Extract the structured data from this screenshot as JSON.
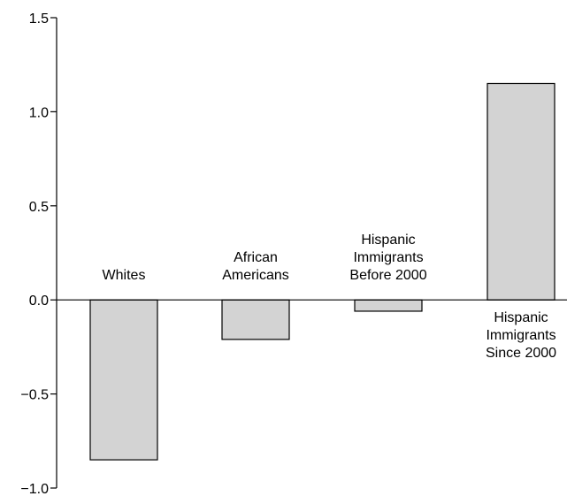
{
  "chart_data": {
    "type": "bar",
    "categories": [
      [
        "Whites"
      ],
      [
        "African",
        "Americans"
      ],
      [
        "Hispanic",
        "Immigrants",
        "Before 2000"
      ],
      [
        "Hispanic",
        "Immigrants",
        "Since 2000"
      ]
    ],
    "values": [
      -0.85,
      -0.21,
      -0.06,
      1.15
    ],
    "ylim": [
      -1.0,
      1.5
    ],
    "yticks": [
      "1.5",
      "1.0",
      "0.5",
      "0.0",
      "−0.5",
      "−1.0"
    ],
    "ytick_values": [
      1.5,
      1.0,
      0.5,
      0.0,
      -0.5,
      -1.0
    ],
    "grid": false,
    "bar_color": "#d3d3d3",
    "edge_color": "#000000"
  }
}
